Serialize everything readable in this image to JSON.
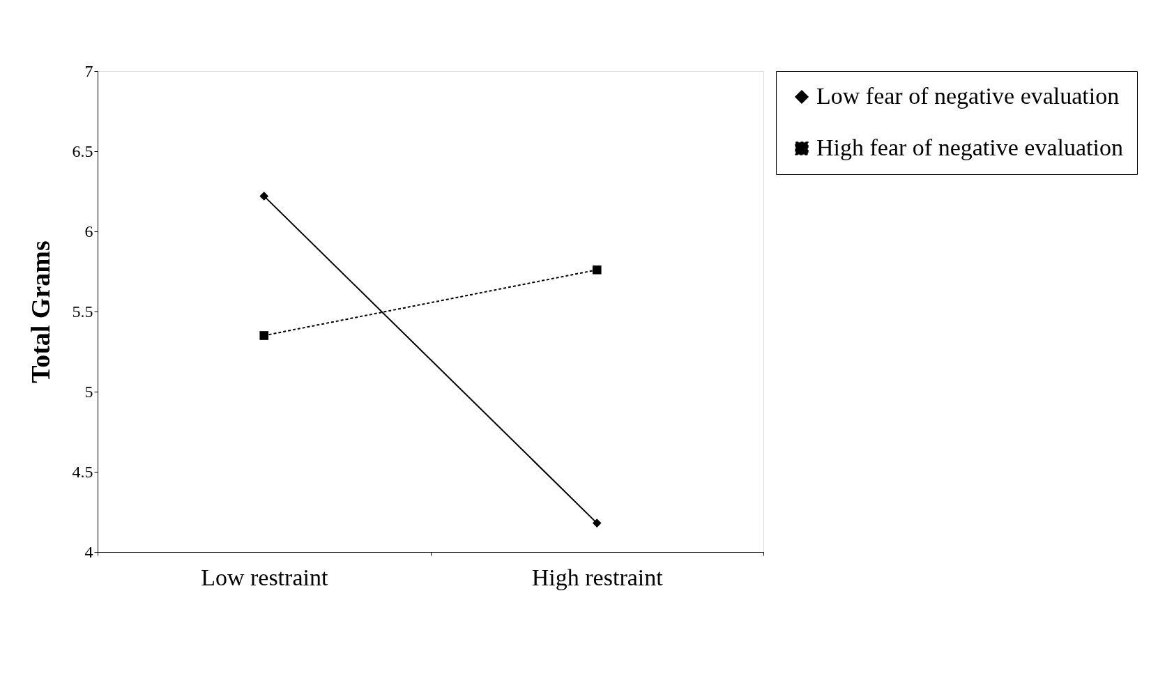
{
  "chart_data": {
    "type": "line",
    "ylabel": "Total Grams",
    "categories": [
      "Low restraint",
      "High restraint"
    ],
    "series": [
      {
        "name": "Low fear of negative evaluation",
        "color": "#000000",
        "values": [
          6.22,
          4.18
        ],
        "marker": "diamond",
        "line_style": "solid"
      },
      {
        "name": "High fear of negative evaluation",
        "color": "#000000",
        "values": [
          5.35,
          5.76
        ],
        "marker": "square",
        "line_style": "dashed"
      }
    ],
    "ylim": [
      4,
      7
    ],
    "yticks": [
      4,
      4.5,
      5,
      5.5,
      6,
      6.5,
      7
    ],
    "grid": false,
    "legend": "right"
  }
}
